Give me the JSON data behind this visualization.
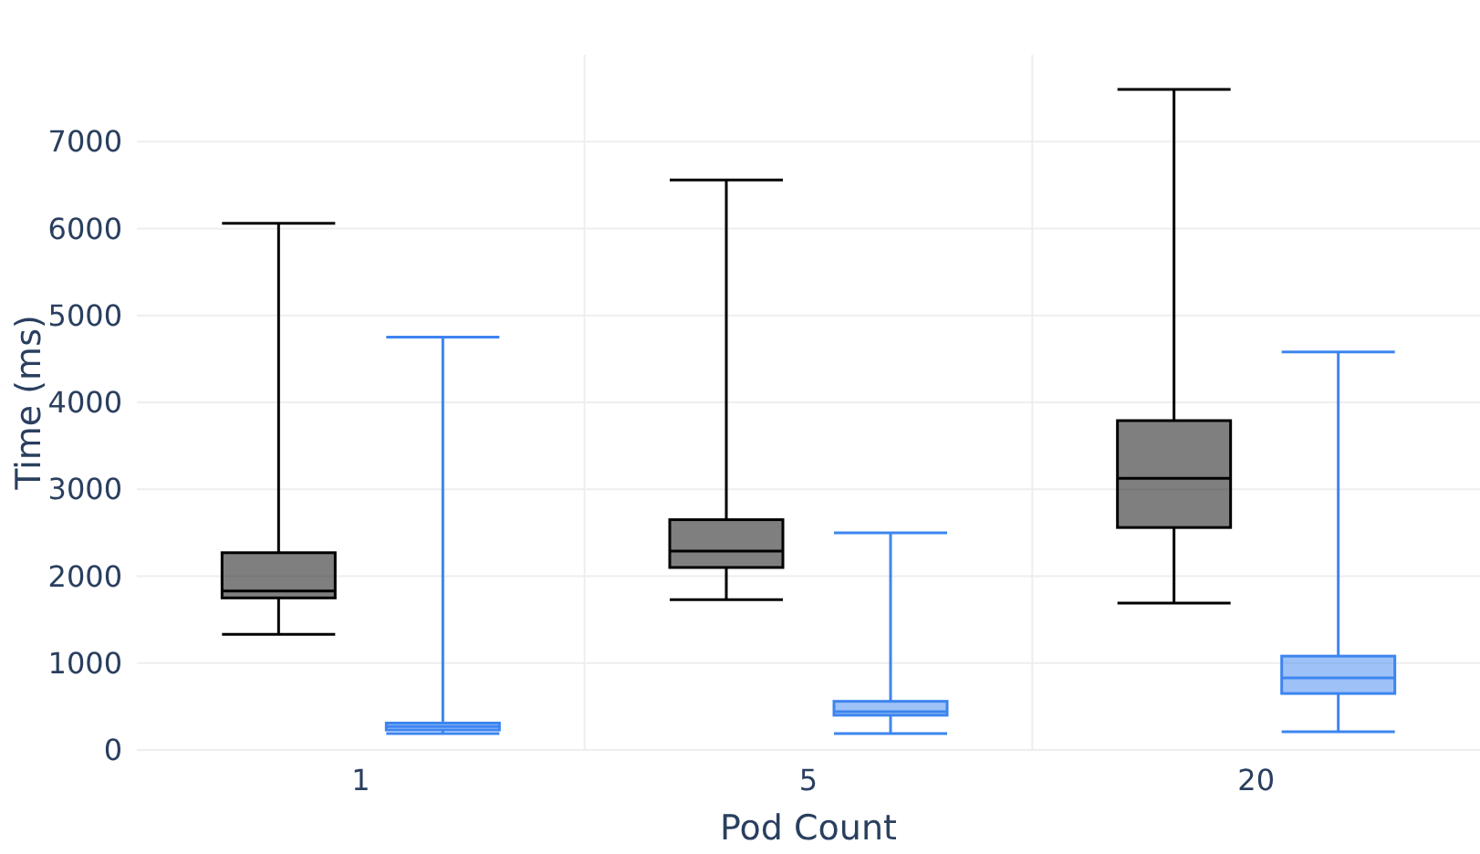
{
  "chart_data": {
    "type": "box",
    "xlabel": "Pod Count",
    "ylabel": "Time (ms)",
    "categories": [
      "1",
      "5",
      "20"
    ],
    "ylim": [
      0,
      8000
    ],
    "yticks": [
      0,
      1000,
      2000,
      3000,
      4000,
      5000,
      6000,
      7000
    ],
    "grid": true,
    "series": [
      {
        "color": "#000000",
        "boxes": [
          {
            "low": 1330,
            "q1": 1750,
            "median": 1830,
            "q3": 2270,
            "high": 6060
          },
          {
            "low": 1730,
            "q1": 2100,
            "median": 2290,
            "q3": 2650,
            "high": 6560
          },
          {
            "low": 1690,
            "q1": 2560,
            "median": 3125,
            "q3": 3790,
            "high": 7600
          }
        ]
      },
      {
        "color": "#3d85f0",
        "boxes": [
          {
            "low": 190,
            "q1": 230,
            "median": 270,
            "q3": 310,
            "high": 4750
          },
          {
            "low": 190,
            "q1": 400,
            "median": 440,
            "q3": 560,
            "high": 2500
          },
          {
            "low": 210,
            "q1": 650,
            "median": 830,
            "q3": 1080,
            "high": 4580
          }
        ]
      }
    ]
  }
}
